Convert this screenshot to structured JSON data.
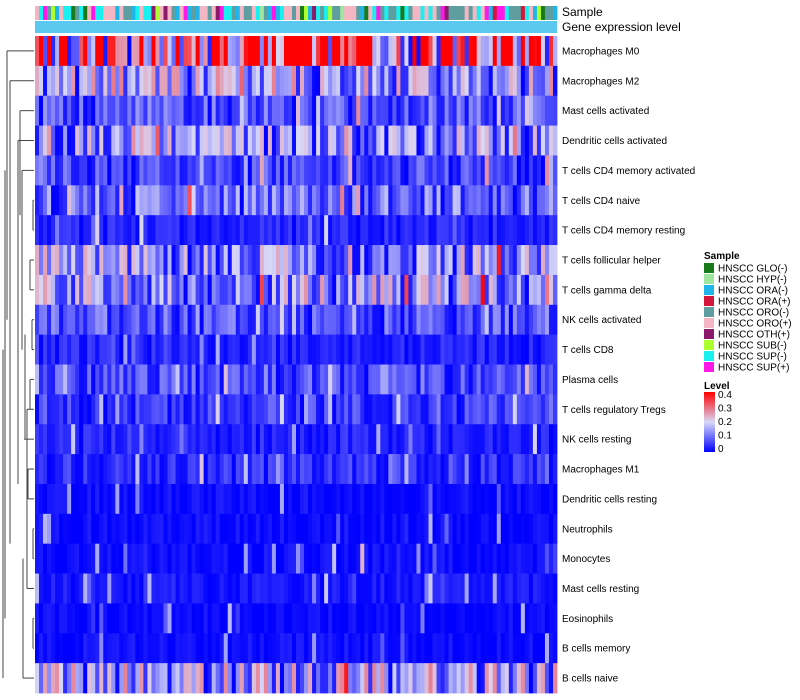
{
  "chart_data": {
    "type": "heatmap",
    "annotation_labels": {
      "sample": "Sample",
      "expression": "Gene expression level"
    },
    "rows": [
      "Macrophages M0",
      "Macrophages M2",
      "Mast cells activated",
      "Dendritic cells activated",
      "T cells CD4 memory activated",
      "T cells CD4 naive",
      "T cells CD4 memory resting",
      "T cells follicular helper",
      "T cells gamma delta",
      "NK cells activated",
      "T cells CD8",
      "Plasma cells",
      "T cells regulatory  Tregs",
      "NK cells resting",
      "Macrophages M1",
      "Dendritic cells resting",
      "Neutrophils",
      "Monocytes",
      "Mast cells resting",
      "Eosinophils",
      "B cells memory",
      "B cells naive"
    ],
    "row_mean_levels": [
      0.32,
      0.14,
      0.07,
      0.12,
      0.06,
      0.09,
      0.03,
      0.12,
      0.13,
      0.07,
      0.03,
      0.06,
      0.05,
      0.03,
      0.04,
      0.01,
      0.01,
      0.01,
      0.02,
      0.005,
      0.01,
      0.14
    ],
    "n_samples": 130,
    "sample_legend": {
      "title": "Sample",
      "items": [
        {
          "label": "HNSCC GLO(-)",
          "color": "#1a7a1a"
        },
        {
          "label": "HNSCC HYP(-)",
          "color": "#9ee6a0"
        },
        {
          "label": "HNSCC ORA(-)",
          "color": "#1fb5e8"
        },
        {
          "label": "HNSCC ORA(+)",
          "color": "#d4163c"
        },
        {
          "label": "HNSCC ORO(-)",
          "color": "#5f9ea0"
        },
        {
          "label": "HNSCC ORO(+)",
          "color": "#f4b6c2"
        },
        {
          "label": "HNSCC OTH(+)",
          "color": "#8b1a6b"
        },
        {
          "label": "HNSCC SUB(-)",
          "color": "#adff2f"
        },
        {
          "label": "HNSCC SUP(-)",
          "color": "#19f0f0"
        },
        {
          "label": "HNSCC SUP(+)",
          "color": "#ff19e8"
        }
      ]
    },
    "level_legend": {
      "title": "Level",
      "ticks": [
        "0.4",
        "0.3",
        "0.2",
        "0.1",
        "0"
      ],
      "range": [
        0,
        0.4
      ],
      "colors": [
        "#0000ff",
        "#d8d8f8",
        "#ff0000"
      ]
    },
    "expression_bar_color": "#5bc8f0"
  }
}
